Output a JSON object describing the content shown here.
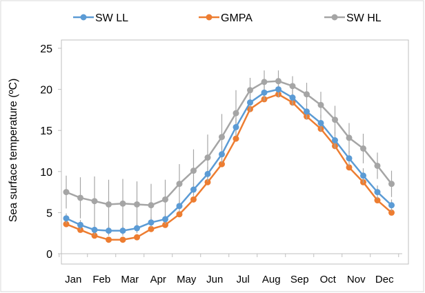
{
  "chart_data": {
    "type": "line",
    "ylabel": "Sea surface temperature (ºC)",
    "ylim": [
      0,
      25
    ],
    "yticks": [
      0,
      5,
      10,
      15,
      20,
      25
    ],
    "grid": false,
    "legend_position": "top",
    "x": [
      0,
      0.5,
      1,
      1.5,
      2,
      2.5,
      3,
      3.5,
      4,
      4.5,
      5,
      5.5,
      6,
      6.5,
      7,
      7.5,
      8,
      8.5,
      9,
      9.5,
      10,
      10.5,
      11,
      11.5
    ],
    "month_labels": [
      "Jan",
      "Feb",
      "Mar",
      "Apr",
      "May",
      "Jun",
      "Jul",
      "Aug",
      "Sep",
      "Oct",
      "Nov",
      "Dec"
    ],
    "series": [
      {
        "name": "SW LL",
        "color": "#5B9BD5",
        "values": [
          4.3,
          3.5,
          2.9,
          2.8,
          2.8,
          3.1,
          3.8,
          4.2,
          5.8,
          7.8,
          9.7,
          12.1,
          15.4,
          18.4,
          19.6,
          20.0,
          19.0,
          17.3,
          15.9,
          13.8,
          11.6,
          9.5,
          7.5,
          5.9
        ],
        "err": [
          0.6,
          0.6,
          0.6,
          0.6,
          0.6,
          0.6,
          0.6,
          0.6,
          0.7,
          0.8,
          0.9,
          1.0,
          1.1,
          1.1,
          1.0,
          1.0,
          1.0,
          1.0,
          1.0,
          1.0,
          0.9,
          0.9,
          0.8,
          0.7
        ]
      },
      {
        "name": "GMPA",
        "color": "#ED7D31",
        "values": [
          3.6,
          2.9,
          2.2,
          1.7,
          1.7,
          2.0,
          3.0,
          3.5,
          4.8,
          6.6,
          8.7,
          10.9,
          14.0,
          17.6,
          18.8,
          19.4,
          18.4,
          16.7,
          15.2,
          13.1,
          10.5,
          8.7,
          6.5,
          5.0
        ]
      },
      {
        "name": "SW HL",
        "color": "#A5A5A5",
        "values": [
          7.5,
          6.8,
          6.4,
          6.0,
          6.1,
          6.0,
          5.9,
          6.6,
          8.5,
          10.1,
          11.7,
          14.2,
          17.1,
          19.9,
          20.9,
          21.0,
          20.4,
          19.4,
          18.1,
          16.3,
          14.1,
          12.8,
          10.7,
          8.5
        ],
        "err": [
          2.0,
          2.5,
          3.0,
          3.0,
          3.0,
          2.8,
          2.6,
          2.4,
          2.4,
          2.6,
          2.8,
          2.8,
          2.8,
          1.5,
          1.4,
          1.3,
          1.2,
          1.4,
          1.6,
          1.7,
          1.8,
          1.8,
          1.6,
          1.6
        ]
      }
    ]
  }
}
